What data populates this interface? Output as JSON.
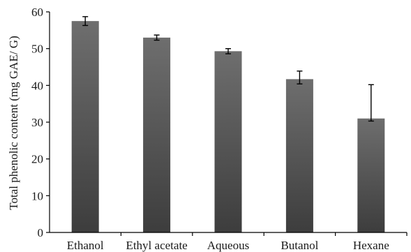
{
  "chart_data": {
    "type": "bar",
    "categories": [
      "Ethanol",
      "Ethyl acetate",
      "Aqueous",
      "Butanol",
      "Hexane"
    ],
    "values": [
      57.5,
      53.0,
      49.3,
      41.7,
      31.0
    ],
    "error_upper": [
      1.2,
      0.7,
      0.7,
      2.2,
      9.2
    ],
    "error_lower": [
      1.2,
      0.7,
      0.7,
      1.3,
      0.7
    ],
    "title": "",
    "xlabel": "",
    "ylabel": "Total phenolic content (mg GAE/ G)",
    "ylim": [
      0,
      60
    ],
    "yticks": [
      "0",
      "10",
      "20",
      "30",
      "40",
      "50",
      "60"
    ],
    "grid": false,
    "legend": "none",
    "colors": {
      "bar_top": "#6e6e6e",
      "bar_bottom": "#3d3d3d",
      "axis": "#000000",
      "error_bar": "#000000",
      "text": "#1a1a1a"
    }
  }
}
